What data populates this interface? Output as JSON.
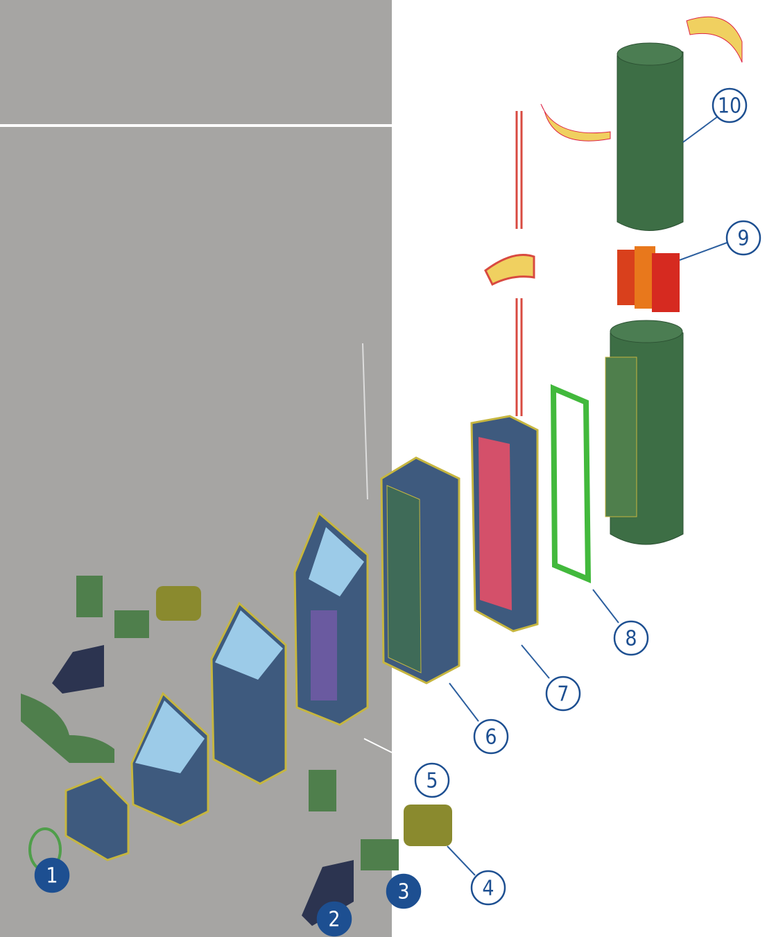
{
  "callouts": [
    {
      "label": "1"
    },
    {
      "label": "2"
    },
    {
      "label": "3"
    },
    {
      "label": "4"
    },
    {
      "label": "5"
    },
    {
      "label": "6"
    },
    {
      "label": "7"
    },
    {
      "label": "8"
    },
    {
      "label": "9"
    },
    {
      "label": "10"
    }
  ]
}
